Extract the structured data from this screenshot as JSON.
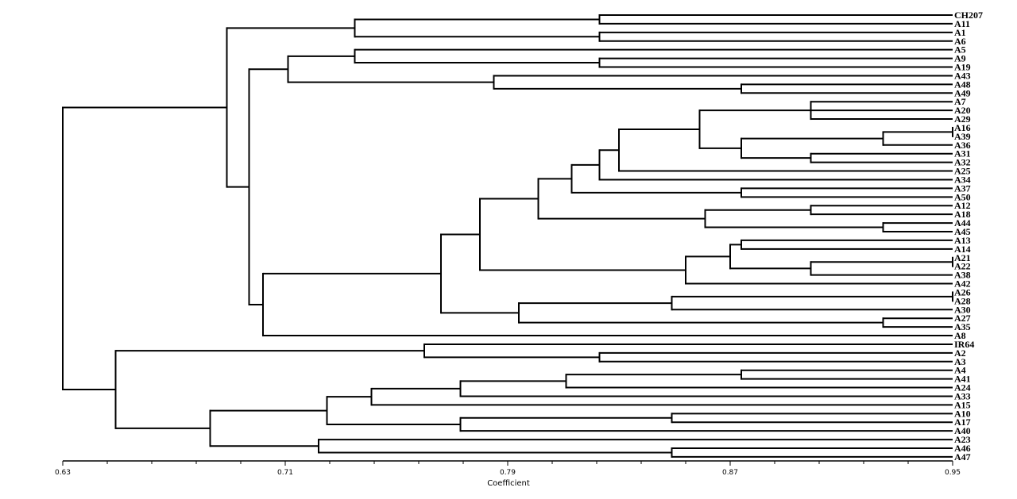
{
  "chart_data": {
    "type": "dendrogram",
    "xlabel": "Coefficient",
    "xlim": [
      0.63,
      0.95
    ],
    "major_ticks": [
      "0.63",
      "0.71",
      "0.79",
      "0.87",
      "0.95"
    ],
    "minor_tick_step": 0.016,
    "tree": {
      "h": 0.63,
      "c": [
        {
          "h": 0.689,
          "c": [
            {
              "h": 0.735,
              "c": [
                {
                  "h": 0.823,
                  "c": [
                    "CH207",
                    "A11"
                  ]
                },
                {
                  "h": 0.823,
                  "c": [
                    "A1",
                    "A6"
                  ]
                }
              ]
            },
            {
              "h": 0.697,
              "c": [
                {
                  "h": 0.711,
                  "c": [
                    {
                      "h": 0.735,
                      "c": [
                        "A5",
                        {
                          "h": 0.823,
                          "c": [
                            "A9",
                            "A19"
                          ]
                        }
                      ]
                    },
                    {
                      "h": 0.785,
                      "c": [
                        "A43",
                        {
                          "h": 0.874,
                          "c": [
                            "A48",
                            "A49"
                          ]
                        }
                      ]
                    }
                  ]
                },
                {
                  "h": 0.702,
                  "c": [
                    {
                      "h": 0.766,
                      "c": [
                        {
                          "h": 0.78,
                          "c": [
                            {
                              "h": 0.801,
                              "c": [
                                {
                                  "h": 0.813,
                                  "c": [
                                    {
                                      "h": 0.823,
                                      "c": [
                                        {
                                          "h": 0.83,
                                          "c": [
                                            {
                                              "h": 0.859,
                                              "c": [
                                                {
                                                  "h": 0.899,
                                                  "c": [
                                                    "A7",
                                                    "A20",
                                                    "A29"
                                                  ]
                                                },
                                                {
                                                  "h": 0.874,
                                                  "c": [
                                                    {
                                                      "h": 0.925,
                                                      "c": [
                                                        {
                                                          "h": 0.95,
                                                          "c": [
                                                            "A16",
                                                            "A39"
                                                          ]
                                                        },
                                                        "A36"
                                                      ]
                                                    },
                                                    {
                                                      "h": 0.899,
                                                      "c": [
                                                        "A31",
                                                        "A32"
                                                      ]
                                                    }
                                                  ]
                                                }
                                              ]
                                            },
                                            "A25"
                                          ]
                                        },
                                        "A34"
                                      ]
                                    },
                                    {
                                      "h": 0.874,
                                      "c": [
                                        "A37",
                                        "A50"
                                      ]
                                    }
                                  ]
                                },
                                {
                                  "h": 0.861,
                                  "c": [
                                    {
                                      "h": 0.899,
                                      "c": [
                                        "A12",
                                        "A18"
                                      ]
                                    },
                                    {
                                      "h": 0.925,
                                      "c": [
                                        "A44",
                                        "A45"
                                      ]
                                    }
                                  ]
                                }
                              ]
                            },
                            {
                              "h": 0.854,
                              "c": [
                                {
                                  "h": 0.87,
                                  "c": [
                                    {
                                      "h": 0.874,
                                      "c": [
                                        "A13",
                                        "A14"
                                      ]
                                    },
                                    {
                                      "h": 0.899,
                                      "c": [
                                        {
                                          "h": 0.95,
                                          "c": [
                                            "A21",
                                            "A22"
                                          ]
                                        },
                                        "A38"
                                      ]
                                    }
                                  ]
                                },
                                "A42"
                              ]
                            }
                          ]
                        },
                        {
                          "h": 0.794,
                          "c": [
                            {
                              "h": 0.849,
                              "c": [
                                {
                                  "h": 0.95,
                                  "c": [
                                    "A26",
                                    "A28"
                                  ]
                                },
                                "A30"
                              ]
                            },
                            {
                              "h": 0.925,
                              "c": [
                                "A27",
                                "A35"
                              ]
                            }
                          ]
                        }
                      ]
                    },
                    "A8"
                  ]
                }
              ]
            }
          ]
        },
        {
          "h": 0.649,
          "c": [
            {
              "h": 0.76,
              "c": [
                "IR64",
                {
                  "h": 0.823,
                  "c": [
                    "A2",
                    "A3"
                  ]
                }
              ]
            },
            {
              "h": 0.683,
              "c": [
                {
                  "h": 0.725,
                  "c": [
                    {
                      "h": 0.741,
                      "c": [
                        {
                          "h": 0.773,
                          "c": [
                            {
                              "h": 0.811,
                              "c": [
                                {
                                  "h": 0.874,
                                  "c": [
                                    "A4",
                                    "A41"
                                  ]
                                },
                                "A24"
                              ]
                            },
                            "A33"
                          ]
                        },
                        "A15"
                      ]
                    },
                    {
                      "h": 0.773,
                      "c": [
                        {
                          "h": 0.849,
                          "c": [
                            "A10",
                            "A17"
                          ]
                        },
                        "A40"
                      ]
                    }
                  ]
                },
                {
                  "h": 0.722,
                  "c": [
                    "A23",
                    {
                      "h": 0.849,
                      "c": [
                        "A46",
                        "A47"
                      ]
                    }
                  ]
                }
              ]
            }
          ]
        }
      ]
    }
  }
}
